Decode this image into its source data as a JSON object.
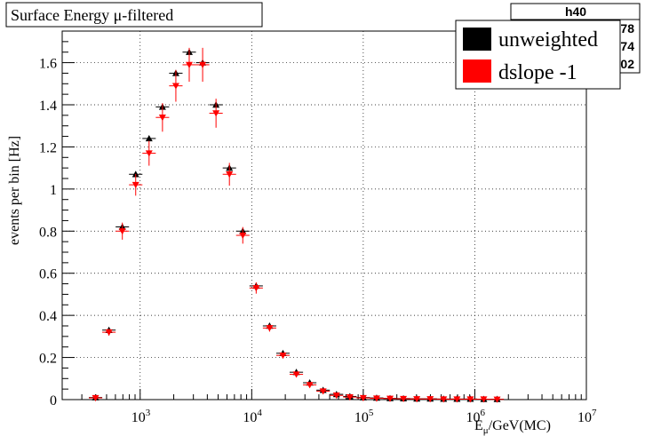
{
  "chart_data": {
    "type": "scatter",
    "title": "Surface Energy μ-filtered",
    "stats_box": {
      "title": "h40",
      "visible_values": [
        "78",
        "74",
        "02"
      ]
    },
    "xlabel": {
      "main": "E",
      "sub": "μ",
      "rest": "/GeV(MC)"
    },
    "ylabel": "events per bin [Hz]",
    "x_scale": "log",
    "xlim": [
      200,
      10000000
    ],
    "ylim": [
      0,
      1.75
    ],
    "grid": true,
    "legend_position": "top-right",
    "x_ticks": [
      {
        "value": 1000,
        "base": "10",
        "exp": "3"
      },
      {
        "value": 10000,
        "base": "10",
        "exp": "4"
      },
      {
        "value": 100000,
        "base": "10",
        "exp": "5"
      },
      {
        "value": 1000000,
        "base": "10",
        "exp": "6"
      },
      {
        "value": 10000000,
        "base": "10",
        "exp": "7"
      }
    ],
    "y_ticks": [
      {
        "value": 0,
        "label": "0"
      },
      {
        "value": 0.2,
        "label": "0.2"
      },
      {
        "value": 0.4,
        "label": "0.4"
      },
      {
        "value": 0.6,
        "label": "0.6"
      },
      {
        "value": 0.8,
        "label": "0.8"
      },
      {
        "value": 1.0,
        "label": "1"
      },
      {
        "value": 1.2,
        "label": "1.2"
      },
      {
        "value": 1.4,
        "label": "1.4"
      },
      {
        "value": 1.6,
        "label": "1.6"
      }
    ],
    "x": [
      398,
      525,
      692,
      912,
      1202,
      1585,
      2089,
      2754,
      3631,
      4786,
      6310,
      8318,
      10965,
      14454,
      19055,
      25119,
      33113,
      43652,
      57544,
      75858,
      100000,
      131826,
      173780,
      229087,
      301995,
      398107,
      524807,
      691831,
      912011,
      1202264,
      1584893
    ],
    "series": [
      {
        "name": "unweighted",
        "color": "#000000",
        "marker": "triangle-up",
        "values": [
          0.01,
          0.33,
          0.82,
          1.07,
          1.24,
          1.39,
          1.55,
          1.65,
          1.6,
          1.4,
          1.1,
          0.8,
          0.54,
          0.35,
          0.22,
          0.13,
          0.08,
          0.045,
          0.025,
          0.015,
          0.01,
          0.008,
          0.006,
          0.005,
          0.004,
          0.004,
          0.003,
          0.003,
          0.003,
          0.002,
          0.002
        ]
      },
      {
        "name": "dslope -1",
        "color": "#ff0000",
        "marker": "triangle-down",
        "values": [
          0.008,
          0.32,
          0.8,
          1.02,
          1.17,
          1.34,
          1.49,
          1.59,
          1.59,
          1.36,
          1.07,
          0.78,
          0.53,
          0.34,
          0.21,
          0.12,
          0.07,
          0.04,
          0.02,
          0.012,
          0.008,
          0.006,
          0.005,
          0.004,
          0.003,
          0.003,
          0.002,
          0.002,
          0.002,
          0.002,
          0.001
        ]
      }
    ]
  }
}
